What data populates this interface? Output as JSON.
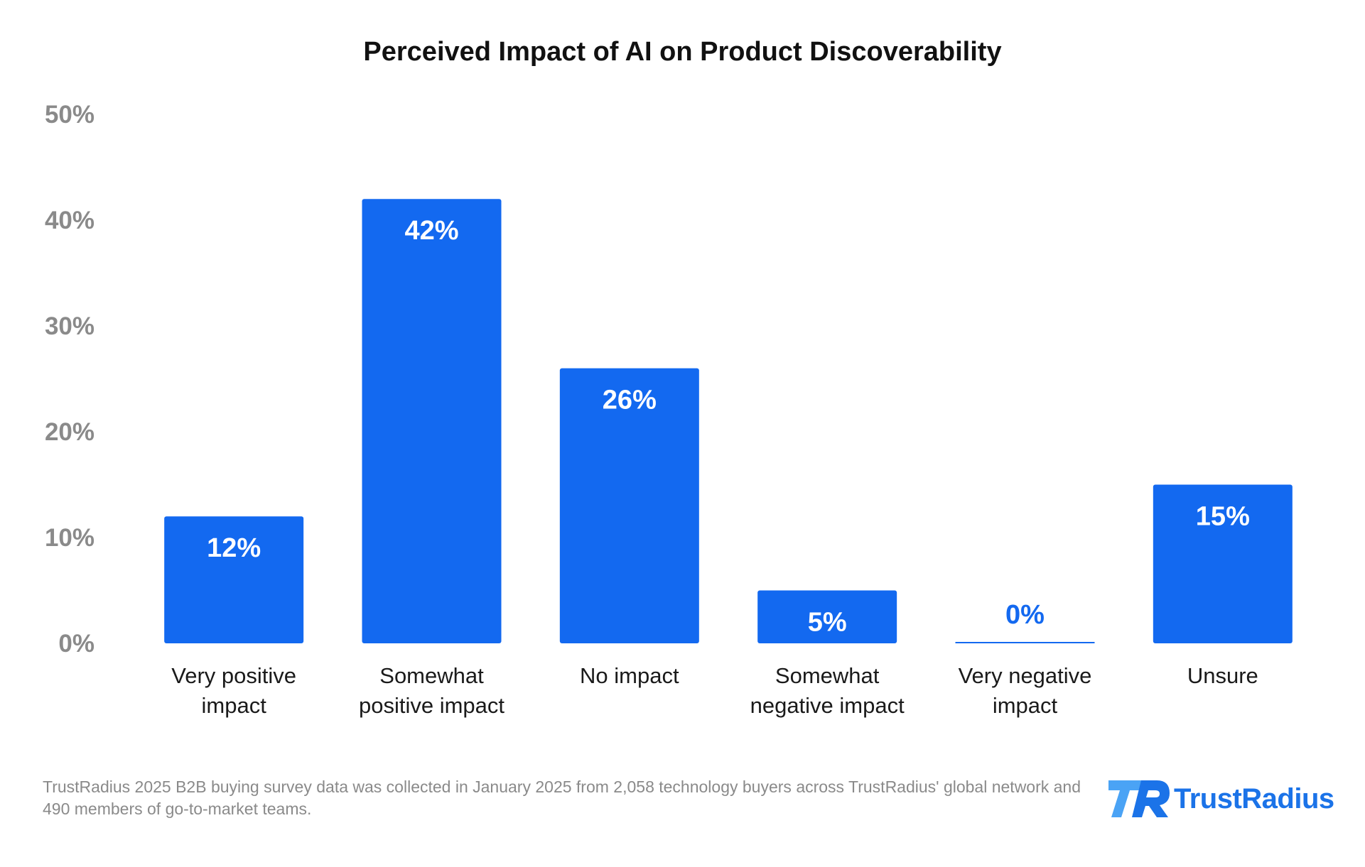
{
  "chart_data": {
    "type": "bar",
    "title": "Perceived Impact of AI on Product Discoverability",
    "categories": [
      [
        "Very positive",
        "impact"
      ],
      [
        "Somewhat",
        "positive impact"
      ],
      [
        "No impact"
      ],
      [
        "Somewhat",
        "negative impact"
      ],
      [
        "Very negative",
        "impact"
      ],
      [
        "Unsure"
      ]
    ],
    "values": [
      12,
      42,
      26,
      5,
      0,
      15
    ],
    "data_labels": [
      "12%",
      "42%",
      "26%",
      "5%",
      "0%",
      "15%"
    ],
    "y_ticks": [
      "0%",
      "10%",
      "20%",
      "30%",
      "40%",
      "50%"
    ],
    "ylim": [
      0,
      50
    ],
    "ylabel": "",
    "xlabel": "",
    "grid": false,
    "legend": "none",
    "bar_color": "#1369f0",
    "inside_label_color": "#ffffff",
    "outside_label_color": "#1369f0"
  },
  "footnote": "TrustRadius 2025 B2B buying survey data was collected in January 2025 from 2,058 technology buyers across TrustRadius' global network and 490 members of go-to-market teams.",
  "brand": {
    "name": "TrustRadius",
    "icon": "trustradius-logo-icon",
    "colors": [
      "#1b73e8",
      "#4aa3f5"
    ]
  }
}
